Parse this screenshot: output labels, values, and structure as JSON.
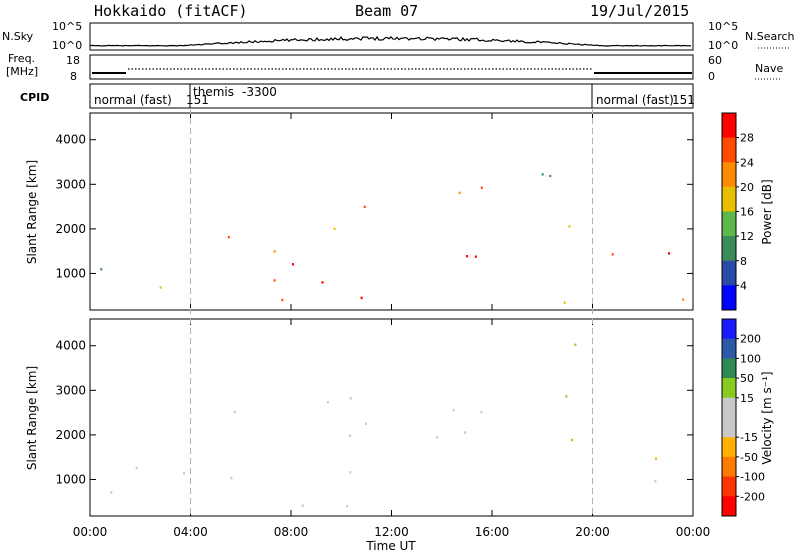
{
  "header": {
    "title": "Hokkaido (fitACF)",
    "beam": "Beam 07",
    "date": "19/Jul/2015"
  },
  "nsky_panel": {
    "left_label": "N.Sky",
    "left_ticks": [
      "10^5",
      "10^0"
    ],
    "right_label": "N.Search",
    "right_ticks": [
      "10^5",
      "10^0"
    ]
  },
  "freq_panel": {
    "left_label_line1": "Freq.",
    "left_label_line2": "[MHz]",
    "left_ticks": [
      "18",
      "8"
    ],
    "right_label": "Nave",
    "right_ticks": [
      "60",
      "0"
    ]
  },
  "cpid_panel": {
    "label": "CPID",
    "segments": [
      {
        "text": "normal (fast)",
        "id": "151",
        "start_hour": 0
      },
      {
        "text": "themis",
        "id": "-3300",
        "start_hour": 4
      },
      {
        "text": "normal (fast)",
        "id": "151",
        "start_hour": 20
      }
    ]
  },
  "colors": {
    "power_scale": [
      "#0000ff",
      "#2a4aa8",
      "#3c8c5a",
      "#5cb84a",
      "#e8c000",
      "#ff8c00",
      "#ff4a00",
      "#ff0000"
    ],
    "velocity_scale": [
      "#1a1aff",
      "#2c5aa8",
      "#2e8b57",
      "#88cc22",
      "#c8c8c8",
      "#c8c8c8",
      "#ffb000",
      "#ff7a00",
      "#ff3300",
      "#ff0000"
    ],
    "ground_scatter": "#c8c8c8"
  },
  "chart_data": [
    {
      "type": "heatmap",
      "name": "power",
      "ylabel": "Slant Range [km]",
      "xlabel": "",
      "x_range_hours": [
        0,
        24
      ],
      "ylim": [
        180,
        4600
      ],
      "yticks": [
        1000,
        2000,
        3000,
        4000
      ],
      "xticks": [
        "00:00",
        "04:00",
        "08:00",
        "12:00",
        "16:00",
        "20:00",
        "00:00"
      ],
      "colorbar": {
        "label": "Power [dB]",
        "ticks": [
          "4",
          "8",
          "12",
          "16",
          "20",
          "24",
          "28"
        ],
        "range": [
          0,
          32
        ]
      },
      "scatter_regions": [
        {
          "t": [
            0.0,
            1.5
          ],
          "r": [
            1000,
            1800
          ],
          "level": 14
        },
        {
          "t": [
            0.0,
            4.0
          ],
          "r": [
            300,
            1100
          ],
          "level": 16
        },
        {
          "t": [
            4.0,
            11.0
          ],
          "r": [
            250,
            1400
          ],
          "level": 28
        },
        {
          "t": [
            6.0,
            11.0
          ],
          "r": [
            250,
            700
          ],
          "level": 30
        },
        {
          "t": [
            4.5,
            8.0
          ],
          "r": [
            1500,
            2700
          ],
          "level": 22
        },
        {
          "t": [
            8.0,
            12.0
          ],
          "r": [
            1800,
            3000
          ],
          "level": 24
        },
        {
          "t": [
            12.0,
            16.5
          ],
          "r": [
            1300,
            2200
          ],
          "level": 28
        },
        {
          "t": [
            14.0,
            17.0
          ],
          "r": [
            2200,
            3500
          ],
          "level": 24
        },
        {
          "t": [
            16.5,
            20.0
          ],
          "r": [
            1600,
            2300
          ],
          "level": 20
        },
        {
          "t": [
            17.0,
            20.0
          ],
          "r": [
            2700,
            4200
          ],
          "level": 14
        },
        {
          "t": [
            20.0,
            24.0
          ],
          "r": [
            900,
            1900
          ],
          "level": 26
        },
        {
          "t": [
            12.0,
            24.0
          ],
          "r": [
            250,
            700
          ],
          "level": 20
        }
      ]
    },
    {
      "type": "heatmap",
      "name": "velocity",
      "ylabel": "Slant Range [km]",
      "xlabel": "Time UT",
      "x_range_hours": [
        0,
        24
      ],
      "ylim": [
        180,
        4600
      ],
      "yticks": [
        1000,
        2000,
        3000,
        4000
      ],
      "xticks": [
        "00:00",
        "04:00",
        "08:00",
        "12:00",
        "16:00",
        "20:00",
        "00:00"
      ],
      "colorbar": {
        "label": "Velocity [m s⁻¹]",
        "ticks": [
          "200",
          "100",
          "50",
          "15",
          "-15",
          "-50",
          "-100",
          "-200"
        ],
        "range": [
          -250,
          250
        ]
      },
      "scatter_regions": [
        {
          "t": [
            0.0,
            4.0
          ],
          "r": [
            300,
            1800
          ],
          "level": 0
        },
        {
          "t": [
            4.0,
            11.0
          ],
          "r": [
            250,
            1400
          ],
          "level": 0
        },
        {
          "t": [
            4.5,
            12.0
          ],
          "r": [
            1500,
            3000
          ],
          "level": 0
        },
        {
          "t": [
            12.0,
            16.5
          ],
          "r": [
            1300,
            2200
          ],
          "level": 0
        },
        {
          "t": [
            14.0,
            17.0
          ],
          "r": [
            2200,
            3500
          ],
          "level": 0
        },
        {
          "t": [
            17.0,
            19.5
          ],
          "r": [
            1500,
            2200
          ],
          "level": 30
        },
        {
          "t": [
            17.0,
            20.0
          ],
          "r": [
            2700,
            4200
          ],
          "level": 25
        },
        {
          "t": [
            20.0,
            24.0
          ],
          "r": [
            900,
            1900
          ],
          "level": 0
        },
        {
          "t": [
            13.5,
            15.0
          ],
          "r": [
            400,
            650
          ],
          "level": -40
        },
        {
          "t": [
            17.0,
            20.0
          ],
          "r": [
            250,
            500
          ],
          "level": -40
        }
      ]
    }
  ]
}
